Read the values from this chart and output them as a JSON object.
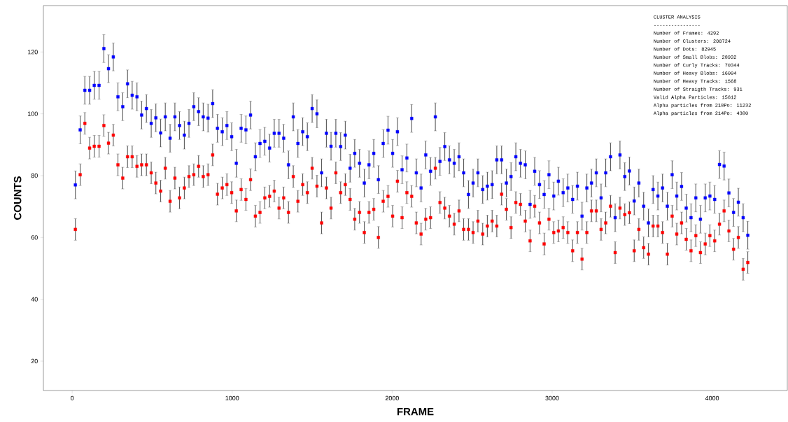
{
  "chart_data": {
    "type": "scatter",
    "xlabel": "FRAME",
    "ylabel": "COUNTS",
    "marker": "square",
    "xlim": [
      -180,
      4470
    ],
    "ylim": [
      10.5,
      135
    ],
    "xticks": [
      0,
      1000,
      2000,
      3000,
      4000
    ],
    "yticks": [
      20,
      40,
      60,
      80,
      100,
      120
    ],
    "x": [
      20,
      50,
      79,
      109,
      138,
      168,
      198,
      227,
      257,
      286,
      316,
      346,
      375,
      405,
      434,
      464,
      494,
      523,
      553,
      582,
      612,
      642,
      671,
      701,
      730,
      760,
      790,
      819,
      849,
      878,
      908,
      938,
      967,
      997,
      1026,
      1056,
      1086,
      1115,
      1145,
      1174,
      1204,
      1234,
      1263,
      1293,
      1322,
      1352,
      1382,
      1411,
      1441,
      1470,
      1500,
      1530,
      1559,
      1589,
      1618,
      1648,
      1678,
      1707,
      1737,
      1766,
      1796,
      1826,
      1855,
      1885,
      1914,
      1944,
      1974,
      2003,
      2033,
      2062,
      2092,
      2122,
      2151,
      2181,
      2210,
      2240,
      2270,
      2299,
      2329,
      2358,
      2388,
      2418,
      2447,
      2477,
      2506,
      2536,
      2566,
      2595,
      2625,
      2654,
      2684,
      2714,
      2743,
      2773,
      2802,
      2832,
      2862,
      2891,
      2921,
      2950,
      2980,
      3010,
      3039,
      3069,
      3098,
      3128,
      3158,
      3187,
      3217,
      3246,
      3276,
      3306,
      3335,
      3365,
      3394,
      3424,
      3454,
      3483,
      3513,
      3542,
      3572,
      3602,
      3631,
      3661,
      3690,
      3720,
      3750,
      3779,
      3809,
      3838,
      3868,
      3898,
      3927,
      3957,
      3986,
      4016,
      4046,
      4075,
      4105,
      4134,
      4164,
      4194,
      4223
    ],
    "series": [
      {
        "color": "#0000ff",
        "values": [
          77.0,
          94.8,
          107.6,
          107.6,
          109.2,
          109.2,
          121.1,
          114.6,
          118.4,
          105.5,
          102.3,
          109.7,
          106.0,
          105.5,
          99.6,
          101.7,
          96.9,
          98.7,
          93.8,
          99.0,
          92.1,
          99.0,
          96.2,
          93.1,
          96.9,
          102.3,
          100.7,
          99.0,
          98.6,
          103.3,
          95.3,
          94.2,
          96.2,
          92.6,
          84.0,
          95.3,
          94.8,
          99.6,
          86.1,
          90.4,
          91.1,
          88.9,
          93.7,
          93.7,
          92.1,
          83.5,
          99.0,
          90.4,
          94.2,
          92.6,
          101.7,
          100.0,
          80.9,
          93.7,
          89.5,
          93.7,
          89.4,
          93.1,
          82.4,
          87.2,
          84.0,
          77.6,
          83.5,
          87.2,
          78.7,
          90.4,
          94.7,
          87.2,
          94.2,
          81.9,
          85.7,
          98.5,
          80.9,
          76.0,
          86.7,
          81.4,
          99.0,
          84.6,
          89.4,
          85.1,
          84.0,
          86.1,
          80.9,
          73.9,
          77.6,
          80.9,
          75.5,
          76.6,
          77.1,
          85.1,
          85.1,
          77.6,
          79.7,
          86.1,
          84.0,
          83.5,
          70.7,
          81.4,
          77.1,
          73.9,
          80.3,
          73.4,
          78.2,
          74.5,
          76.0,
          72.3,
          76.6,
          66.9,
          76.0,
          77.6,
          80.9,
          72.8,
          80.9,
          86.1,
          66.4,
          86.7,
          79.7,
          81.5,
          71.8,
          77.6,
          70.1,
          64.7,
          75.5,
          73.4,
          76.0,
          70.1,
          80.3,
          73.4,
          76.5,
          69.5,
          66.4,
          72.8,
          65.9,
          72.8,
          73.4,
          72.3,
          83.6,
          83.1,
          74.4,
          68.1,
          71.4,
          66.4,
          60.7
        ],
        "errors": [
          4.5,
          4.5,
          4.5,
          4.5,
          4.5,
          4.5,
          4.5,
          4.5,
          4.5,
          4.5,
          4.5,
          4.5,
          4.5,
          4.5,
          4.5,
          4.5,
          4.5,
          4.5,
          4.5,
          4.5,
          4.5,
          4.5,
          4.5,
          4.5,
          4.5,
          4.5,
          4.5,
          4.5,
          4.5,
          4.5,
          4.5,
          4.5,
          4.5,
          4.5,
          4.5,
          4.5,
          4.5,
          4.5,
          4.5,
          4.5,
          4.5,
          4.5,
          4.5,
          4.5,
          4.5,
          4.5,
          4.5,
          4.5,
          4.5,
          4.5,
          4.5,
          4.5,
          4.5,
          4.5,
          4.5,
          4.5,
          4.5,
          4.5,
          4.5,
          4.5,
          4.5,
          4.5,
          4.5,
          4.5,
          4.5,
          4.5,
          4.5,
          4.5,
          4.5,
          4.5,
          4.5,
          4.5,
          4.5,
          4.5,
          4.5,
          4.5,
          4.5,
          4.5,
          4.5,
          4.5,
          4.5,
          4.5,
          4.5,
          4.5,
          4.5,
          4.5,
          4.5,
          4.5,
          4.5,
          4.5,
          4.5,
          4.5,
          4.5,
          4.5,
          4.5,
          4.5,
          4.5,
          4.5,
          4.5,
          4.5,
          4.5,
          4.5,
          4.5,
          4.5,
          4.5,
          4.5,
          4.5,
          4.5,
          4.5,
          4.5,
          4.5,
          4.5,
          4.5,
          4.5,
          4.5,
          4.5,
          4.5,
          4.5,
          4.5,
          4.5,
          4.5,
          4.5,
          4.5,
          4.5,
          4.5,
          4.5,
          4.5,
          4.5,
          4.5,
          4.5,
          4.5,
          4.5,
          4.5,
          4.5,
          4.5,
          4.5,
          4.5,
          4.5,
          4.5,
          4.5,
          4.5,
          4.5,
          4.5
        ]
      },
      {
        "color": "#ff0000",
        "values": [
          62.6,
          80.3,
          96.9,
          88.9,
          89.5,
          89.5,
          96.2,
          90.5,
          93.1,
          83.5,
          79.2,
          86.1,
          86.1,
          83.0,
          83.5,
          83.5,
          80.9,
          77.6,
          75.0,
          82.4,
          71.7,
          79.2,
          72.8,
          76.0,
          79.7,
          80.3,
          83.0,
          79.7,
          80.3,
          86.7,
          74.0,
          76.0,
          77.1,
          74.5,
          68.6,
          75.5,
          72.3,
          78.7,
          66.9,
          68.1,
          72.8,
          73.3,
          75.0,
          69.5,
          72.8,
          68.1,
          79.7,
          71.7,
          77.1,
          74.5,
          82.4,
          76.6,
          64.7,
          76.0,
          69.5,
          80.9,
          74.5,
          77.1,
          72.3,
          65.9,
          68.1,
          61.6,
          68.1,
          69.1,
          60.0,
          71.7,
          73.3,
          66.9,
          78.2,
          66.4,
          74.5,
          73.3,
          64.7,
          61.1,
          65.9,
          66.4,
          82.4,
          71.3,
          69.5,
          66.9,
          64.3,
          68.6,
          62.6,
          62.6,
          61.6,
          65.3,
          61.1,
          63.7,
          65.3,
          63.7,
          74.0,
          69.1,
          63.2,
          71.3,
          70.7,
          65.3,
          58.9,
          70.1,
          64.7,
          57.9,
          65.9,
          61.6,
          62.1,
          63.2,
          61.6,
          55.7,
          61.6,
          53.0,
          61.6,
          68.6,
          68.6,
          62.6,
          64.7,
          70.1,
          55.1,
          69.5,
          67.4,
          68.0,
          55.7,
          62.6,
          56.7,
          54.6,
          63.7,
          63.7,
          61.6,
          54.6,
          66.9,
          61.1,
          64.7,
          59.4,
          55.7,
          60.6,
          55.1,
          57.9,
          60.6,
          58.9,
          64.3,
          68.6,
          62.1,
          56.2,
          60.0,
          49.7,
          51.9
        ],
        "errors": [
          3.5,
          3.5,
          3.5,
          3.5,
          3.5,
          3.5,
          3.5,
          3.5,
          3.5,
          3.5,
          3.5,
          3.5,
          3.5,
          3.5,
          3.5,
          3.5,
          3.5,
          3.5,
          3.5,
          3.5,
          3.5,
          3.5,
          3.5,
          3.5,
          3.5,
          3.5,
          3.5,
          3.5,
          3.5,
          3.5,
          3.5,
          3.5,
          3.5,
          3.5,
          3.5,
          3.5,
          3.5,
          3.5,
          3.5,
          3.5,
          3.5,
          3.5,
          3.5,
          3.5,
          3.5,
          3.5,
          3.5,
          3.5,
          3.5,
          3.5,
          3.5,
          3.5,
          3.5,
          3.5,
          3.5,
          3.5,
          3.5,
          3.5,
          3.5,
          3.5,
          3.5,
          3.5,
          3.5,
          3.5,
          3.5,
          3.5,
          3.5,
          3.5,
          3.5,
          3.5,
          3.5,
          3.5,
          3.5,
          3.5,
          3.5,
          3.5,
          3.5,
          3.5,
          3.5,
          3.5,
          3.5,
          3.5,
          3.5,
          3.5,
          3.5,
          3.5,
          3.5,
          3.5,
          3.5,
          3.5,
          3.5,
          3.5,
          3.5,
          3.5,
          3.5,
          3.5,
          3.5,
          3.5,
          3.5,
          3.5,
          3.5,
          3.5,
          3.5,
          3.5,
          3.5,
          3.5,
          3.5,
          3.5,
          3.5,
          3.5,
          3.5,
          3.5,
          3.5,
          3.5,
          3.5,
          3.5,
          3.5,
          3.5,
          3.5,
          3.5,
          3.5,
          3.5,
          3.5,
          3.5,
          3.5,
          3.5,
          3.5,
          3.5,
          3.5,
          3.5,
          3.5,
          3.5,
          3.5,
          3.5,
          3.5,
          3.5,
          3.5,
          3.5,
          3.5,
          3.5,
          3.5,
          3.5,
          3.5
        ]
      }
    ],
    "annotations": [
      "CLUSTER ANALYSIS",
      "----------------",
      "Number of Frames: 4292",
      "Number of Clusters: 200724",
      "Number of Dots: 82945",
      "Number of Small Blobs: 28932",
      "Number of Curly Tracks: 70344",
      "Number of Heavy Blobs: 16004",
      "Number of Heavy Tracks: 1568",
      "Number of Straigth Tracks: 931",
      "Valid Alpha Particles: 15612",
      "Alpha particles from 218Po:  11232",
      "Alpha particles from 214Po:  4380"
    ]
  }
}
